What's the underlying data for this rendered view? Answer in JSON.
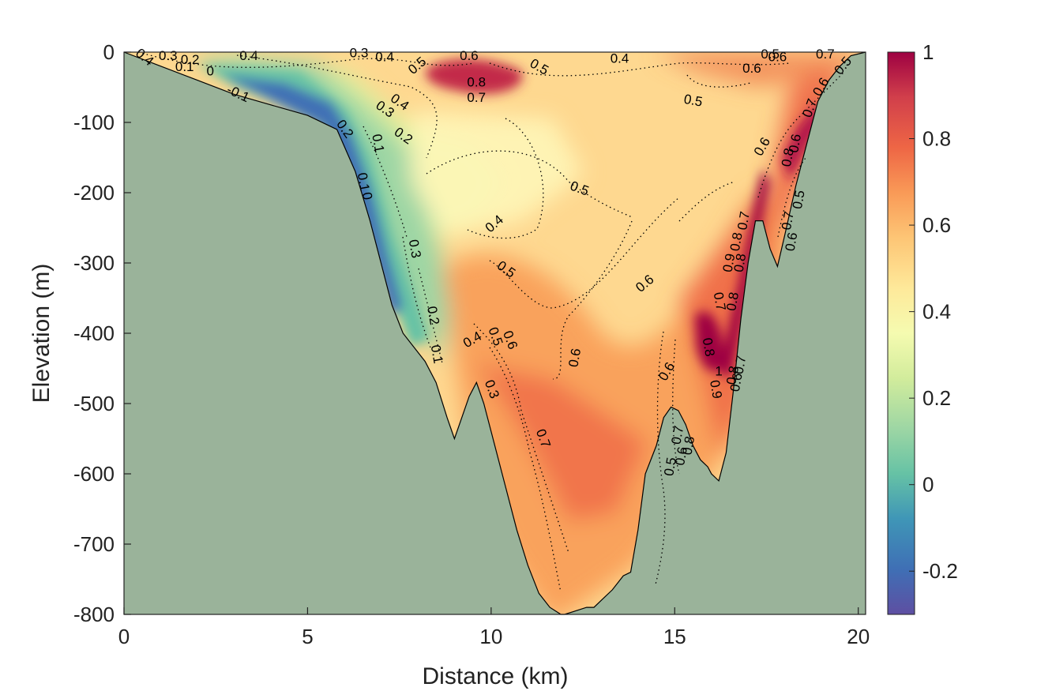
{
  "chart_data": {
    "type": "heatmap",
    "title": "",
    "xlabel": "Distance (km)",
    "ylabel": "Elevation (m)",
    "xlim": [
      0,
      20.2
    ],
    "ylim": [
      -800,
      0
    ],
    "x_ticks": [
      0,
      5,
      10,
      15,
      20
    ],
    "y_ticks": [
      0,
      -100,
      -200,
      -300,
      -400,
      -500,
      -600,
      -700,
      -800
    ],
    "colorbar": {
      "colormap": "Spectral (reversed)",
      "clim": [
        -0.3,
        1.0
      ],
      "ticks": [
        1,
        0.8,
        0.6,
        0.4,
        0.2,
        0,
        -0.2
      ]
    },
    "mask_color": "#9ab39a",
    "bathymetry": {
      "distance_km": [
        0,
        1,
        2,
        3,
        4,
        5,
        5.8,
        6.3,
        6.7,
        7.0,
        7.3,
        7.6,
        7.9,
        8.2,
        8.5,
        8.8,
        9.0,
        9.2,
        9.4,
        9.6,
        9.8,
        10.0,
        10.3,
        10.7,
        11.0,
        11.3,
        11.6,
        11.9,
        12.0,
        12.3,
        12.6,
        12.8,
        13.0,
        13.3,
        13.6,
        13.8,
        14.0,
        14.2,
        14.5,
        14.7,
        14.9,
        15.1,
        15.3,
        15.5,
        15.7,
        15.9,
        16.0,
        16.2,
        16.4,
        16.6,
        16.8,
        17.0,
        17.2,
        17.4,
        17.6,
        17.8,
        18.0,
        18.3,
        18.6,
        18.9,
        19.2,
        19.5,
        19.8,
        20.2
      ],
      "elevation_m": [
        0,
        -20,
        -40,
        -60,
        -75,
        -90,
        -110,
        -170,
        -240,
        -300,
        -360,
        -400,
        -420,
        -440,
        -470,
        -520,
        -550,
        -520,
        -490,
        -470,
        -500,
        -540,
        -600,
        -680,
        -730,
        -770,
        -790,
        -800,
        -800,
        -795,
        -790,
        -790,
        -780,
        -765,
        -745,
        -740,
        -680,
        -600,
        -560,
        -520,
        -505,
        -510,
        -530,
        -560,
        -580,
        -590,
        -600,
        -610,
        -570,
        -480,
        -380,
        -300,
        -240,
        -240,
        -280,
        -305,
        -260,
        -190,
        -130,
        -70,
        -40,
        -20,
        -5,
        0
      ]
    },
    "colored_regions": [
      {
        "value": -0.2,
        "color": "#3f6fb5",
        "desc": "cold core along western slope"
      },
      {
        "value": 0.1,
        "color": "#7fc9a6"
      },
      {
        "value": 0.3,
        "color": "#e8f29d"
      },
      {
        "value": 0.5,
        "color": "#fed890"
      },
      {
        "value": 0.6,
        "color": "#f9a25b"
      },
      {
        "value": 0.8,
        "color": "#dd4c3e"
      },
      {
        "value": 1.0,
        "color": "#a0124a"
      }
    ],
    "contour_labels": [
      {
        "text": "0.4",
        "x": 0.55,
        "y": -8,
        "rot": 40
      },
      {
        "text": "0.3",
        "x": 1.2,
        "y": -6,
        "rot": 0
      },
      {
        "text": "0.2",
        "x": 1.8,
        "y": -12,
        "rot": 0
      },
      {
        "text": "0.1",
        "x": 1.65,
        "y": -22,
        "rot": 0
      },
      {
        "text": "0",
        "x": 2.35,
        "y": -28,
        "rot": 0
      },
      {
        "text": "-0.1",
        "x": 3.1,
        "y": -60,
        "rot": 25
      },
      {
        "text": "0.4",
        "x": 3.4,
        "y": -6,
        "rot": 0
      },
      {
        "text": "0.3",
        "x": 6.4,
        "y": -2,
        "rot": 0
      },
      {
        "text": "0.4",
        "x": 7.1,
        "y": -8,
        "rot": 0
      },
      {
        "text": "0.5",
        "x": 8.0,
        "y": -20,
        "rot": -40
      },
      {
        "text": "0.6",
        "x": 9.4,
        "y": -6,
        "rot": 0
      },
      {
        "text": "0.8",
        "x": 9.6,
        "y": -44,
        "rot": 0
      },
      {
        "text": "0.7",
        "x": 9.6,
        "y": -66,
        "rot": 0
      },
      {
        "text": "0.5",
        "x": 11.3,
        "y": -22,
        "rot": 30
      },
      {
        "text": "0.4",
        "x": 13.5,
        "y": -10,
        "rot": 0
      },
      {
        "text": "0.5",
        "x": 15.5,
        "y": -70,
        "rot": 10
      },
      {
        "text": "0.5",
        "x": 17.6,
        "y": -4,
        "rot": 0
      },
      {
        "text": "0.6",
        "x": 17.8,
        "y": -8,
        "rot": 0
      },
      {
        "text": "0.6",
        "x": 17.1,
        "y": -24,
        "rot": 0
      },
      {
        "text": "0.7",
        "x": 19.1,
        "y": -4,
        "rot": 0
      },
      {
        "text": "0.4",
        "x": 7.5,
        "y": -72,
        "rot": 35
      },
      {
        "text": "0.3",
        "x": 7.1,
        "y": -82,
        "rot": 35
      },
      {
        "text": "0.2",
        "x": 7.6,
        "y": -120,
        "rot": 35
      },
      {
        "text": "0.1",
        "x": 6.9,
        "y": -130,
        "rot": 80
      },
      {
        "text": "0.2",
        "x": 6.0,
        "y": -110,
        "rot": 55
      },
      {
        "text": "0.1",
        "x": 6.5,
        "y": -185,
        "rot": 80
      },
      {
        "text": "0",
        "x": 6.6,
        "y": -205,
        "rot": 80
      },
      {
        "text": "0.5",
        "x": 12.4,
        "y": -195,
        "rot": 20
      },
      {
        "text": "0.4",
        "x": 10.1,
        "y": -245,
        "rot": -40
      },
      {
        "text": "0.3",
        "x": 7.9,
        "y": -280,
        "rot": 80
      },
      {
        "text": "0.5",
        "x": 10.4,
        "y": -310,
        "rot": 35
      },
      {
        "text": "0.6",
        "x": 14.2,
        "y": -330,
        "rot": -40
      },
      {
        "text": "0.2",
        "x": 8.4,
        "y": -375,
        "rot": 80
      },
      {
        "text": "0.1",
        "x": 8.5,
        "y": -430,
        "rot": 80
      },
      {
        "text": "0.4",
        "x": 9.5,
        "y": -410,
        "rot": -30
      },
      {
        "text": "0.5",
        "x": 10.1,
        "y": -405,
        "rot": 70
      },
      {
        "text": "0.6",
        "x": 10.5,
        "y": -410,
        "rot": 70
      },
      {
        "text": "0.3",
        "x": 10.0,
        "y": -480,
        "rot": 70
      },
      {
        "text": "0.6",
        "x": 12.3,
        "y": -435,
        "rot": -80
      },
      {
        "text": "0.7",
        "x": 11.4,
        "y": -550,
        "rot": 70
      },
      {
        "text": "0.6",
        "x": 14.8,
        "y": -455,
        "rot": -60
      },
      {
        "text": "0.7",
        "x": 15.1,
        "y": -545,
        "rot": -80
      },
      {
        "text": "0.8",
        "x": 15.4,
        "y": -560,
        "rot": -80
      },
      {
        "text": "0.5",
        "x": 14.9,
        "y": -590,
        "rot": -80
      },
      {
        "text": "0.6",
        "x": 15.2,
        "y": -575,
        "rot": -80
      },
      {
        "text": "0.7",
        "x": 16.2,
        "y": -355,
        "rot": 80
      },
      {
        "text": "0.8",
        "x": 16.6,
        "y": -355,
        "rot": -80
      },
      {
        "text": "0.8",
        "x": 15.9,
        "y": -420,
        "rot": 80
      },
      {
        "text": "1",
        "x": 16.2,
        "y": -455,
        "rot": 0
      },
      {
        "text": "0.9",
        "x": 16.1,
        "y": -480,
        "rot": 80
      },
      {
        "text": "0.8",
        "x": 16.6,
        "y": -460,
        "rot": -80
      },
      {
        "text": "0.6",
        "x": 16.7,
        "y": -470,
        "rot": -80
      },
      {
        "text": "0.7",
        "x": 16.8,
        "y": -445,
        "rot": -80
      },
      {
        "text": "0.6",
        "x": 17.4,
        "y": -135,
        "rot": -60
      },
      {
        "text": "0.7",
        "x": 16.9,
        "y": -240,
        "rot": -80
      },
      {
        "text": "0.8",
        "x": 16.7,
        "y": -270,
        "rot": -80
      },
      {
        "text": "0.9",
        "x": 16.5,
        "y": -300,
        "rot": -80
      },
      {
        "text": "0.8",
        "x": 16.8,
        "y": -300,
        "rot": -80
      },
      {
        "text": "0.8",
        "x": 18.1,
        "y": -150,
        "rot": -80
      },
      {
        "text": "0.6",
        "x": 18.3,
        "y": -130,
        "rot": -80
      },
      {
        "text": "0.7",
        "x": 18.1,
        "y": -240,
        "rot": -80
      },
      {
        "text": "0.5",
        "x": 18.4,
        "y": -210,
        "rot": -80
      },
      {
        "text": "0.6",
        "x": 18.2,
        "y": -270,
        "rot": -80
      },
      {
        "text": "0.7",
        "x": 18.7,
        "y": -80,
        "rot": -70
      },
      {
        "text": "0.6",
        "x": 19.0,
        "y": -50,
        "rot": -60
      },
      {
        "text": "0.5",
        "x": 19.6,
        "y": -20,
        "rot": -50
      }
    ]
  }
}
